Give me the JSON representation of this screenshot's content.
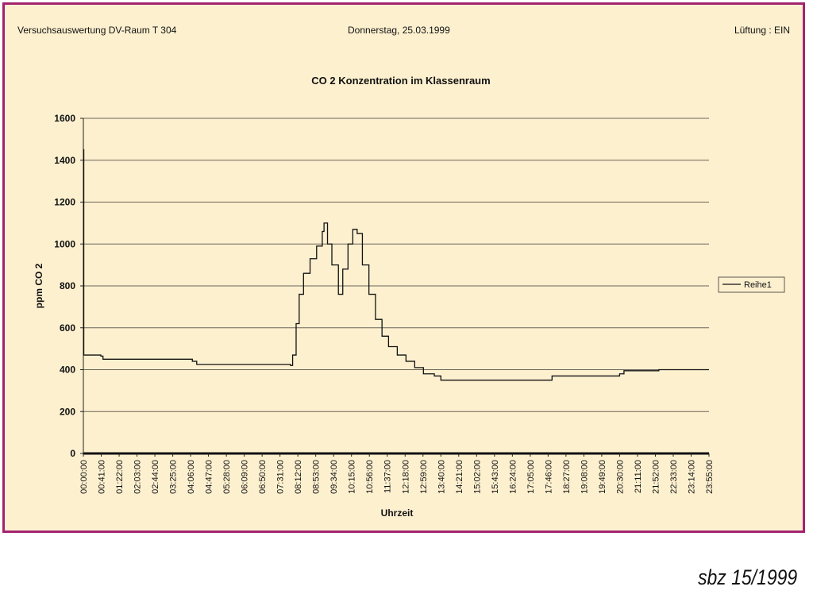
{
  "header": {
    "left": "Versuchsauswertung DV-Raum T 304",
    "center": "Donnerstag, 25.03.1999",
    "right": "Lüftung : EIN"
  },
  "footer": "sbz 15/1999",
  "colors": {
    "frame": "#a3236f",
    "background": "#fdf0cf",
    "line": "#111111"
  },
  "chart_data": {
    "type": "line",
    "title": "CO 2 Konzentration im Klassenraum",
    "xlabel": "Uhrzeit",
    "ylabel": "ppm CO 2",
    "ylim": [
      0,
      1600
    ],
    "yticks": [
      0,
      200,
      400,
      600,
      800,
      1000,
      1200,
      1400,
      1600
    ],
    "xlim_minutes": [
      0,
      1435
    ],
    "xtick_labels": [
      "00:00:00",
      "00:41:00",
      "01:22:00",
      "02:03:00",
      "02:44:00",
      "03:25:00",
      "04:06:00",
      "04:47:00",
      "05:28:00",
      "06:09:00",
      "06:50:00",
      "07:31:00",
      "08:12:00",
      "08:53:00",
      "09:34:00",
      "10:15:00",
      "10:56:00",
      "11:37:00",
      "12:18:00",
      "12:59:00",
      "13:40:00",
      "14:21:00",
      "15:02:00",
      "15:43:00",
      "16:24:00",
      "17:05:00",
      "17:46:00",
      "18:27:00",
      "19:08:00",
      "19:49:00",
      "20:30:00",
      "21:11:00",
      "21:52:00",
      "22:33:00",
      "23:14:00",
      "23:55:00"
    ],
    "grid": true,
    "legend": {
      "placement": "right",
      "entries": [
        "Reihe1"
      ]
    },
    "series": [
      {
        "name": "Reihe1",
        "points_minutes_ppm": [
          [
            0,
            1450
          ],
          [
            1,
            470
          ],
          [
            40,
            465
          ],
          [
            45,
            450
          ],
          [
            250,
            440
          ],
          [
            260,
            425
          ],
          [
            475,
            420
          ],
          [
            480,
            470
          ],
          [
            488,
            620
          ],
          [
            495,
            760
          ],
          [
            505,
            860
          ],
          [
            520,
            930
          ],
          [
            535,
            990
          ],
          [
            548,
            1060
          ],
          [
            552,
            1100
          ],
          [
            560,
            1000
          ],
          [
            570,
            900
          ],
          [
            585,
            760
          ],
          [
            595,
            880
          ],
          [
            607,
            1000
          ],
          [
            618,
            1070
          ],
          [
            628,
            1050
          ],
          [
            640,
            900
          ],
          [
            655,
            760
          ],
          [
            670,
            640
          ],
          [
            685,
            560
          ],
          [
            700,
            510
          ],
          [
            720,
            470
          ],
          [
            740,
            440
          ],
          [
            760,
            410
          ],
          [
            780,
            380
          ],
          [
            805,
            370
          ],
          [
            820,
            350
          ],
          [
            1070,
            350
          ],
          [
            1075,
            370
          ],
          [
            1230,
            380
          ],
          [
            1240,
            395
          ],
          [
            1320,
            400
          ],
          [
            1435,
            400
          ]
        ]
      }
    ]
  }
}
